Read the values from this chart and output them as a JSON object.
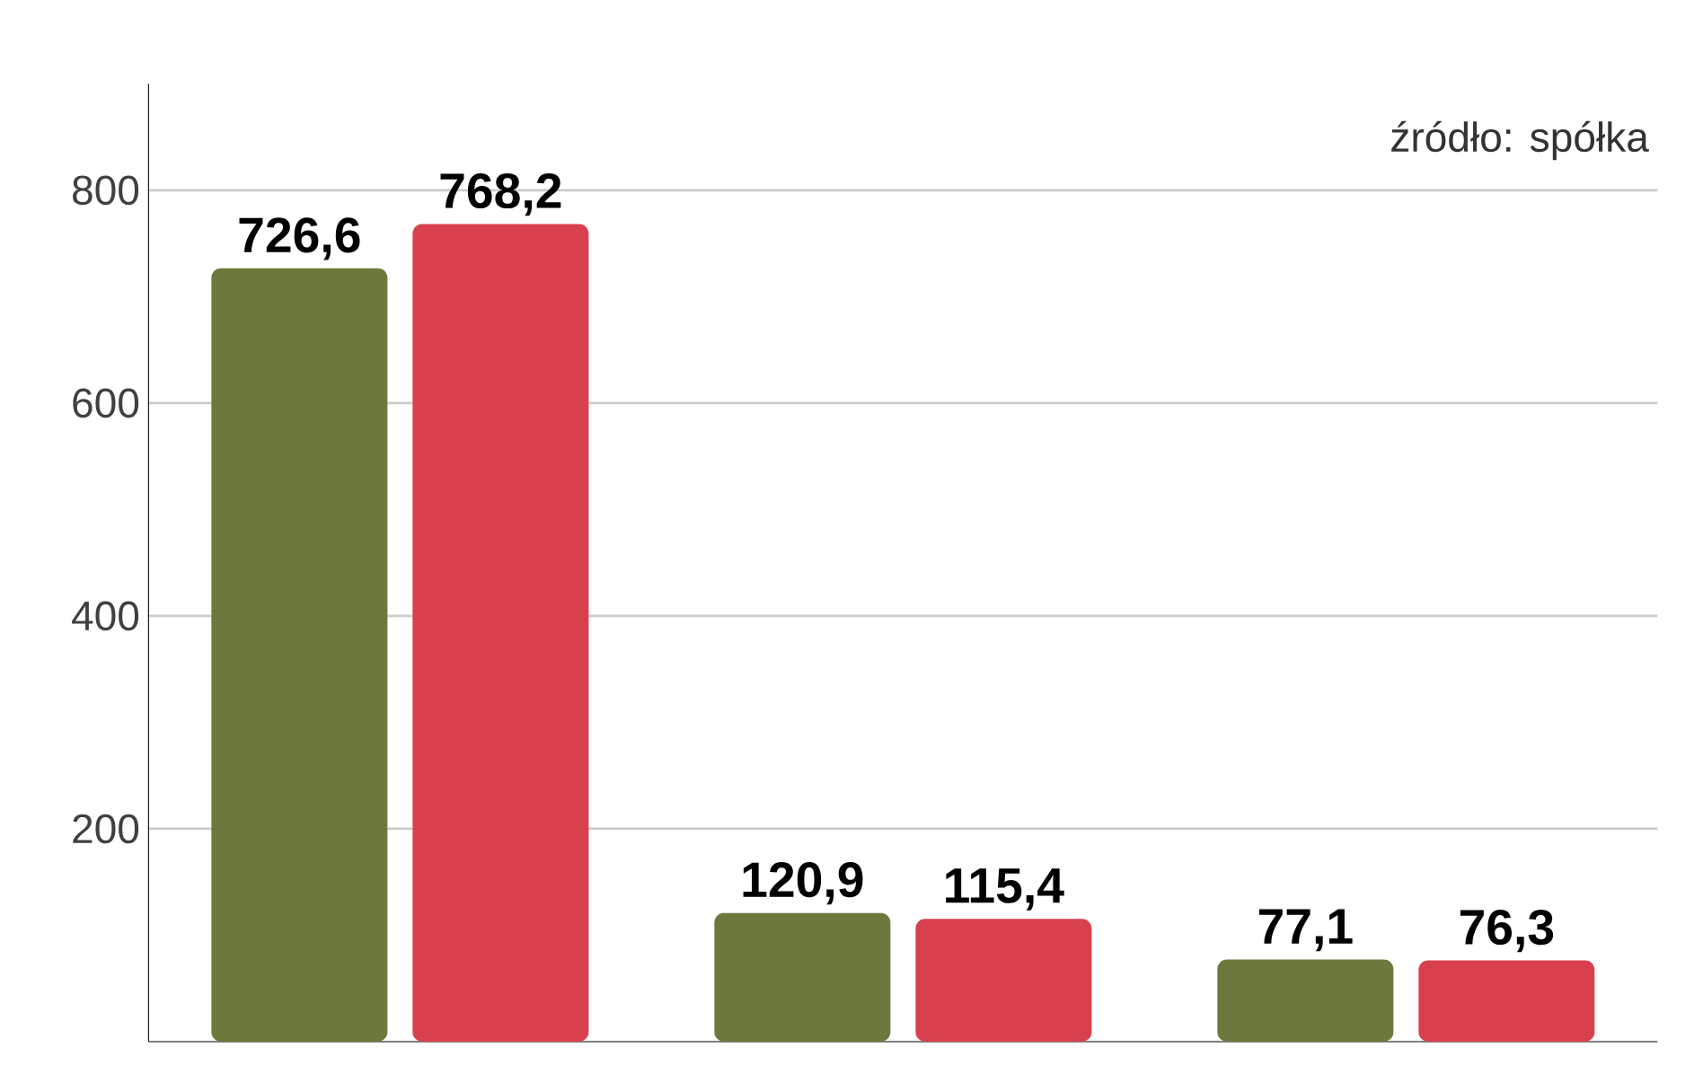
{
  "chart_data": {
    "type": "bar",
    "categories": [
      null,
      null,
      null
    ],
    "series": [
      {
        "color": "#6b7a3c",
        "values": [
          726.6,
          120.9,
          77.1
        ],
        "value_labels": [
          "726,6",
          "120,9",
          "77,1"
        ]
      },
      {
        "color": "#d9404d",
        "values": [
          768.2,
          115.4,
          76.3
        ],
        "value_labels": [
          "768,2",
          "115,4",
          "76,3"
        ]
      }
    ],
    "ylim": [
      0,
      900
    ],
    "yticks": [
      200,
      400,
      600,
      800
    ],
    "grid": "y",
    "annotations": [
      "źródło: spółka"
    ]
  }
}
